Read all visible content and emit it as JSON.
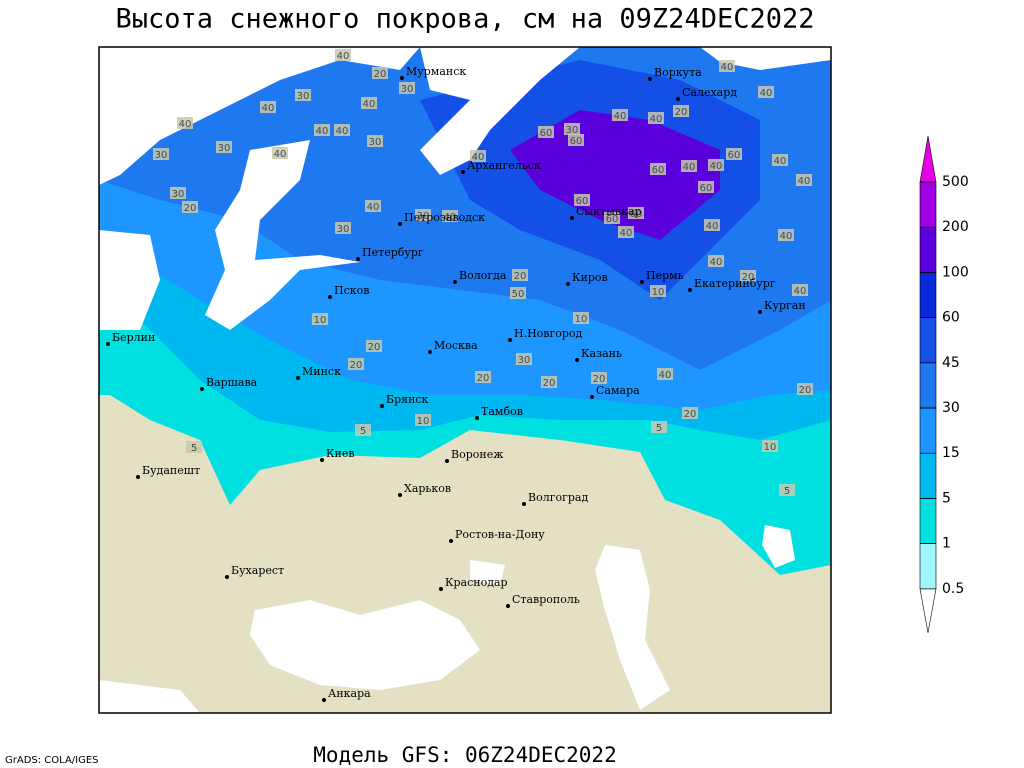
{
  "title": "Высота снежного покрова, см на 09Z24DEC2022",
  "footer": "Модель GFS: 06Z24DEC2022",
  "credit": "GrADS: COLA/IGES",
  "legend": {
    "levels": [
      0.5,
      1,
      5,
      15,
      30,
      45,
      60,
      100,
      200,
      500
    ],
    "colors": [
      "#ffffff",
      "#a0f5ff",
      "#00e0e0",
      "#00b8f0",
      "#1e96ff",
      "#1e78f0",
      "#1450e6",
      "#0a28dc",
      "#5a00dc",
      "#a000e6",
      "#e600e6"
    ]
  },
  "cities": [
    "Мурманск",
    "Воркута",
    "Салехард",
    "Архангельск",
    "Петрозаводск",
    "Сыктывкар",
    "Петербург",
    "Вологда",
    "Киров",
    "Пермь",
    "Екатеринбург",
    "Курган",
    "Псков",
    "Н.Новгород",
    "Казань",
    "Берлин",
    "Москва",
    "Минск",
    "Варшава",
    "Самара",
    "Брянск",
    "Тамбов",
    "Киев",
    "Воронеж",
    "Будапешт",
    "Харьков",
    "Волгоград",
    "Ростов-на-Дону",
    "Бухарест",
    "Краснодар",
    "Ставрополь",
    "Анкара"
  ],
  "contour_labels": [
    40,
    20,
    30,
    40,
    30,
    40,
    40,
    30,
    30,
    40,
    40,
    40,
    30,
    30,
    20,
    40,
    30,
    30,
    40,
    40,
    60,
    30,
    60,
    40,
    40,
    20,
    40,
    40,
    60,
    40,
    40,
    60,
    40,
    40,
    60,
    60,
    60,
    60,
    40,
    40,
    40,
    40,
    20,
    40,
    20,
    50,
    10,
    10,
    10,
    20,
    20,
    30,
    40,
    20,
    20,
    20,
    20,
    20,
    10,
    5,
    10,
    5,
    5,
    5
  ]
}
